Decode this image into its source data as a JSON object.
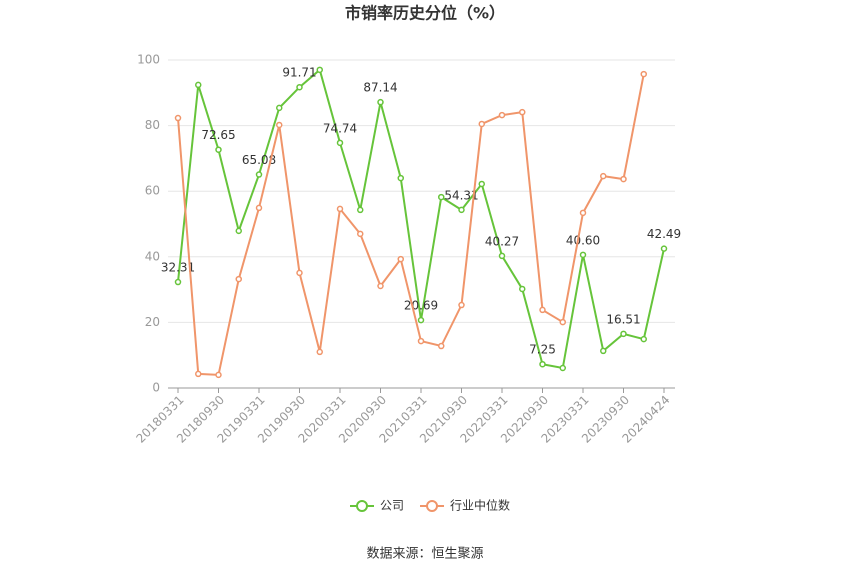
{
  "chart_data": {
    "type": "line",
    "title": "市销率历史分位（%）",
    "source": "数据来源：恒生聚源",
    "categories": [
      "20180331",
      null,
      "20180930",
      null,
      "20190331",
      null,
      "20190930",
      null,
      "20200331",
      null,
      "20200930",
      null,
      "20210331",
      null,
      "20210930",
      null,
      "20220331",
      null,
      "20220930",
      null,
      "20230331",
      null,
      "20230930",
      null,
      "20240424"
    ],
    "series": [
      {
        "name": "公司",
        "color": "#66c43a",
        "values": [
          32.31,
          92.4,
          72.65,
          47.9,
          65.08,
          85.4,
          91.71,
          97.0,
          74.74,
          54.3,
          87.14,
          64.0,
          20.69,
          58.2,
          54.31,
          62.2,
          40.27,
          30.2,
          7.25,
          6.1,
          40.6,
          11.3,
          16.51,
          14.9,
          42.49
        ],
        "value_labels": [
          "32.31",
          null,
          "72.65",
          null,
          "65.08",
          null,
          "91.71",
          null,
          "74.74",
          null,
          "87.14",
          null,
          "20.69",
          null,
          "54.31",
          null,
          "40.27",
          null,
          "7.25",
          null,
          "40.60",
          null,
          "16.51",
          null,
          "42.49"
        ]
      },
      {
        "name": "行业中位数",
        "color": "#f0956a",
        "values": [
          82.3,
          4.3,
          4.0,
          33.2,
          54.9,
          80.2,
          35.1,
          11.0,
          54.6,
          47.0,
          31.1,
          39.3,
          14.3,
          12.8,
          25.3,
          80.5,
          83.2,
          84.1,
          23.8,
          20.1,
          53.4,
          64.6,
          63.7,
          95.7,
          null
        ]
      }
    ],
    "ylim": [
      0,
      100
    ],
    "yticks": [
      0,
      20,
      40,
      60,
      80,
      100
    ],
    "grid": true
  }
}
